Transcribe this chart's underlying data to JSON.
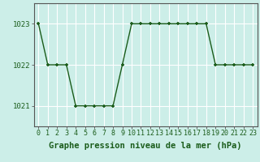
{
  "hours": [
    0,
    1,
    2,
    3,
    4,
    5,
    6,
    7,
    8,
    9,
    10,
    11,
    12,
    13,
    14,
    15,
    16,
    17,
    18,
    19,
    20,
    21,
    22,
    23
  ],
  "values": [
    1023,
    1022,
    1022,
    1022,
    1021,
    1021,
    1021,
    1021,
    1021,
    1022,
    1023,
    1023,
    1023,
    1023,
    1023,
    1023,
    1023,
    1023,
    1023,
    1022,
    1022,
    1022,
    1022,
    1022
  ],
  "line_color": "#1a5c1a",
  "marker": "+",
  "marker_size": 3,
  "marker_lw": 1.2,
  "line_width": 1.0,
  "bg_color": "#cceee8",
  "grid_color": "#ffffff",
  "grid_lw": 0.8,
  "xlabel": "Graphe pression niveau de la mer (hPa)",
  "xlabel_fontsize": 7.5,
  "xlabel_fontweight": "bold",
  "ylim": [
    1020.5,
    1023.5
  ],
  "xlim": [
    -0.5,
    23.5
  ],
  "yticks": [
    1021,
    1022,
    1023
  ],
  "xtick_fontsize": 6,
  "ytick_fontsize": 6.5,
  "tick_color": "#1a5c1a",
  "spine_color": "#555555",
  "spine_lw": 0.8
}
